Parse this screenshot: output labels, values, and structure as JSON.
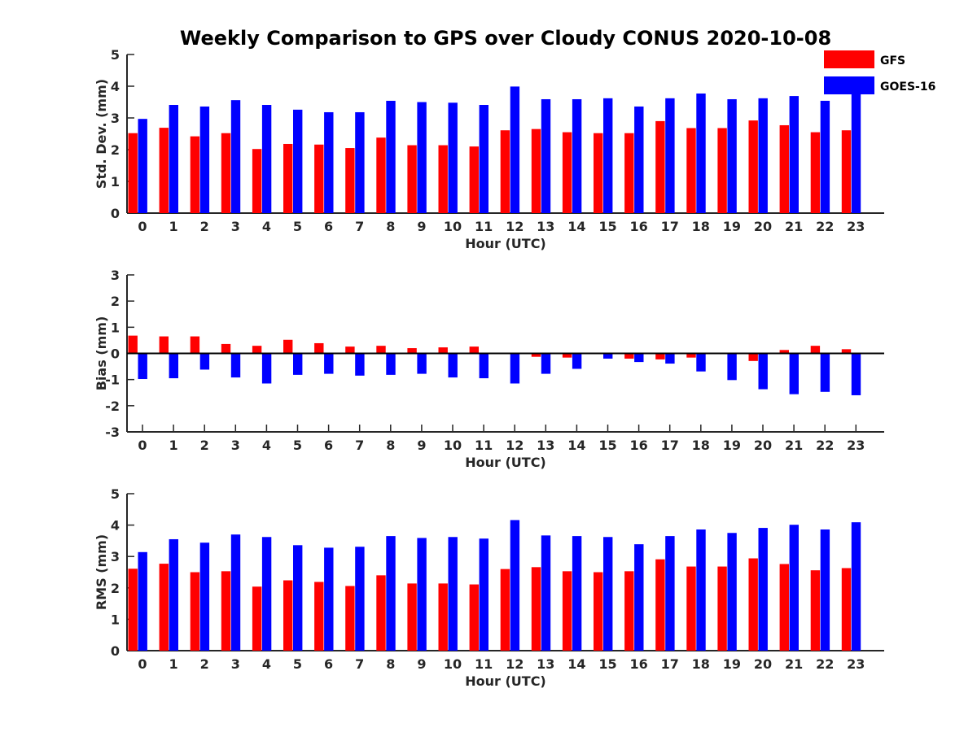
{
  "figure": {
    "title": "Weekly Comparison to GPS over Cloudy CONUS 2020-10-08"
  },
  "legend": {
    "placement": "top-right",
    "items": [
      {
        "label": "GFS",
        "color": "#ff0000"
      },
      {
        "label": "GOES-16",
        "color": "#0000ff"
      }
    ]
  },
  "chart_data": [
    {
      "type": "bar",
      "id": "stddev",
      "title": "",
      "xlabel": "Hour (UTC)",
      "ylabel": "Std. Dev. (mm)",
      "ylim": [
        0,
        5
      ],
      "yticks": [
        "0",
        "1",
        "2",
        "3",
        "4",
        "5"
      ],
      "categories": [
        "0",
        "1",
        "2",
        "3",
        "4",
        "5",
        "6",
        "7",
        "8",
        "9",
        "10",
        "11",
        "12",
        "13",
        "14",
        "15",
        "16",
        "17",
        "18",
        "19",
        "20",
        "21",
        "22",
        "23"
      ],
      "series": [
        {
          "name": "GFS",
          "color": "#ff0000",
          "values": [
            2.52,
            2.69,
            2.42,
            2.52,
            2.02,
            2.18,
            2.16,
            2.05,
            2.38,
            2.14,
            2.14,
            2.1,
            2.61,
            2.65,
            2.55,
            2.52,
            2.52,
            2.9,
            2.68,
            2.68,
            2.92,
            2.77,
            2.55,
            2.61
          ]
        },
        {
          "name": "GOES-16",
          "color": "#0000ff",
          "values": [
            2.97,
            3.41,
            3.36,
            3.56,
            3.41,
            3.26,
            3.18,
            3.18,
            3.54,
            3.5,
            3.48,
            3.41,
            3.99,
            3.59,
            3.59,
            3.62,
            3.36,
            3.62,
            3.77,
            3.59,
            3.62,
            3.69,
            3.54,
            3.87
          ]
        }
      ]
    },
    {
      "type": "bar",
      "id": "bias",
      "title": "",
      "xlabel": "Hour (UTC)",
      "ylabel": "Bias (mm)",
      "ylim": [
        -3,
        3
      ],
      "yticks": [
        "-3",
        "-2",
        "-1",
        "0",
        "1",
        "2",
        "3"
      ],
      "zero_line": true,
      "categories": [
        "0",
        "1",
        "2",
        "3",
        "4",
        "5",
        "6",
        "7",
        "8",
        "9",
        "10",
        "11",
        "12",
        "13",
        "14",
        "15",
        "16",
        "17",
        "18",
        "19",
        "20",
        "21",
        "22",
        "23"
      ],
      "series": [
        {
          "name": "GFS",
          "color": "#ff0000",
          "values": [
            0.68,
            0.65,
            0.65,
            0.36,
            0.29,
            0.52,
            0.39,
            0.26,
            0.29,
            0.2,
            0.23,
            0.26,
            0.0,
            -0.13,
            -0.16,
            0.0,
            -0.2,
            -0.23,
            -0.16,
            -0.03,
            -0.29,
            0.13,
            0.29,
            0.16
          ]
        },
        {
          "name": "GOES-16",
          "color": "#0000ff",
          "values": [
            -0.98,
            -0.95,
            -0.62,
            -0.92,
            -1.15,
            -0.82,
            -0.78,
            -0.85,
            -0.82,
            -0.78,
            -0.92,
            -0.95,
            -1.15,
            -0.78,
            -0.59,
            -0.2,
            -0.33,
            -0.39,
            -0.69,
            -1.02,
            -1.37,
            -1.56,
            -1.47,
            -1.6
          ]
        }
      ]
    },
    {
      "type": "bar",
      "id": "rms",
      "title": "",
      "xlabel": "Hour (UTC)",
      "ylabel": "RMS (mm)",
      "ylim": [
        0,
        5
      ],
      "yticks": [
        "0",
        "1",
        "2",
        "3",
        "4",
        "5"
      ],
      "categories": [
        "0",
        "1",
        "2",
        "3",
        "4",
        "5",
        "6",
        "7",
        "8",
        "9",
        "10",
        "11",
        "12",
        "13",
        "14",
        "15",
        "16",
        "17",
        "18",
        "19",
        "20",
        "21",
        "22",
        "23"
      ],
      "series": [
        {
          "name": "GFS",
          "color": "#ff0000",
          "values": [
            2.61,
            2.77,
            2.5,
            2.53,
            2.04,
            2.24,
            2.19,
            2.06,
            2.4,
            2.14,
            2.14,
            2.11,
            2.6,
            2.66,
            2.53,
            2.5,
            2.53,
            2.91,
            2.68,
            2.68,
            2.94,
            2.76,
            2.56,
            2.63
          ]
        },
        {
          "name": "GOES-16",
          "color": "#0000ff",
          "values": [
            3.14,
            3.55,
            3.44,
            3.7,
            3.62,
            3.36,
            3.28,
            3.31,
            3.65,
            3.59,
            3.62,
            3.57,
            4.16,
            3.67,
            3.65,
            3.62,
            3.39,
            3.65,
            3.86,
            3.75,
            3.91,
            4.01,
            3.86,
            4.09
          ]
        }
      ]
    }
  ]
}
